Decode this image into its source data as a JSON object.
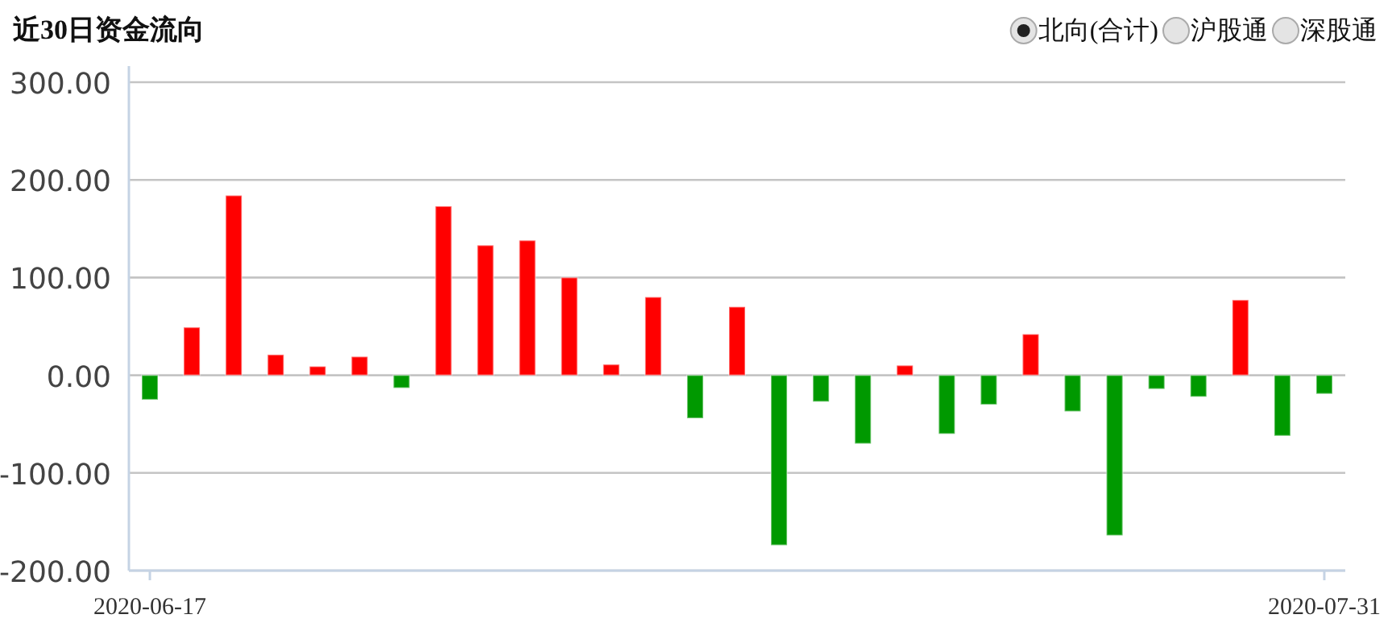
{
  "chart_data": {
    "type": "bar",
    "title": "近30日资金流向",
    "annotations": [
      "北向(合计)",
      "沪股通",
      "深股通"
    ],
    "categories": [
      "2020-06-17",
      null,
      null,
      null,
      null,
      null,
      null,
      null,
      null,
      null,
      null,
      null,
      null,
      null,
      null,
      null,
      null,
      null,
      null,
      null,
      null,
      null,
      null,
      null,
      null,
      null,
      null,
      null,
      "2020-07-31"
    ],
    "values": [
      -25,
      49,
      184,
      21,
      9,
      19,
      -13,
      173,
      133,
      138,
      100,
      11,
      80,
      -44,
      70,
      -174,
      -27,
      -70,
      10,
      -60,
      -30,
      42,
      -37,
      -164,
      -14,
      -22,
      77,
      -62,
      -19
    ],
    "colors": [
      "#009900",
      "#ff0000",
      "#ff0000",
      "#ff0000",
      "#ff0000",
      "#ff0000",
      "#009900",
      "#ff0000",
      "#ff0000",
      "#ff0000",
      "#ff0000",
      "#ff0000",
      "#ff0000",
      "#009900",
      "#ff0000",
      "#009900",
      "#009900",
      "#009900",
      "#ff0000",
      "#009900",
      "#009900",
      "#ff0000",
      "#009900",
      "#009900",
      "#009900",
      "#009900",
      "#ff0000",
      "#009900",
      "#009900"
    ],
    "ylim": [
      -200,
      300
    ],
    "yticks": [
      {
        "value": -200,
        "label": "-200.00"
      },
      {
        "value": -100,
        "label": "-100.00"
      },
      {
        "value": 0,
        "label": "0.00"
      },
      {
        "value": 100,
        "label": "100.00"
      },
      {
        "value": 200,
        "label": "200.00"
      },
      {
        "value": 300,
        "label": "300.00"
      }
    ],
    "grid": "y",
    "legend": false
  }
}
